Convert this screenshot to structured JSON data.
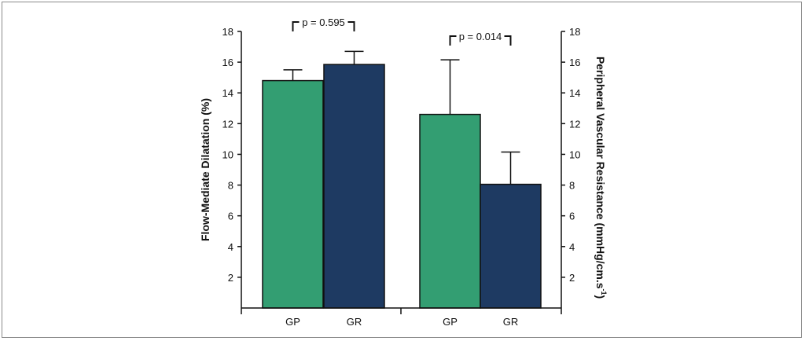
{
  "chart_data": {
    "type": "bar",
    "categories": [
      "GP",
      "GR",
      "GP",
      "GR"
    ],
    "groups": [
      {
        "axis": "left",
        "bars": [
          {
            "category": "GP",
            "value": 14.8,
            "error": 0.7,
            "color": "#339e72"
          },
          {
            "category": "GR",
            "value": 15.85,
            "error": 0.85,
            "color": "#1e3a62"
          }
        ],
        "annotation": "p = 0.595"
      },
      {
        "axis": "right",
        "bars": [
          {
            "category": "GP",
            "value": 12.6,
            "error": 3.55,
            "color": "#339e72"
          },
          {
            "category": "GR",
            "value": 8.05,
            "error": 2.1,
            "color": "#1e3a62"
          }
        ],
        "annotation": "p = 0.014"
      }
    ],
    "ylabel_left": "Flow-Mediate Dilatation (%)",
    "ylabel_right_main": "Peripheral Vascular Resistance (mmHg/cm.s",
    "ylabel_right_sup": "-1",
    "ylabel_right_end": ")",
    "ylim": [
      0,
      18
    ],
    "yticks": [
      2,
      4,
      6,
      8,
      10,
      12,
      14,
      16,
      18
    ],
    "grid": false,
    "colors": {
      "gp": "#339e72",
      "gr": "#1e3a62",
      "axis": "#111111"
    }
  }
}
